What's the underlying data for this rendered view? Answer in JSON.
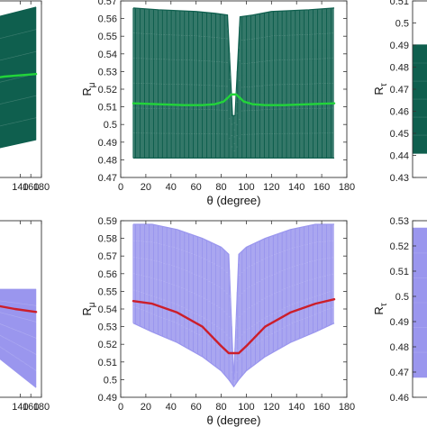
{
  "chart_data": [
    {
      "id": "top-left",
      "type": "scatter",
      "style": "dense-band",
      "xlim": [
        0,
        180
      ],
      "x_ticks": [
        140,
        160,
        180
      ],
      "x_tick_labels": [
        "140",
        "160",
        "180"
      ],
      "band_color": "#0f5f4e",
      "line_color": "#22d43a",
      "band": {
        "x": [
          10,
          170
        ],
        "upper": [
          0.548,
          0.565
        ],
        "lower": [
          0.445,
          0.46
        ]
      },
      "central_line": {
        "x": [
          10,
          60,
          110,
          170
        ],
        "y": [
          0.505,
          0.507,
          0.51,
          0.512
        ]
      },
      "ylim": [
        0.43,
        0.57
      ]
    },
    {
      "id": "top-middle",
      "type": "scatter",
      "style": "dense-band",
      "xlabel": "θ (degree)",
      "ylabel": "R",
      "ylabel_sub": "μ",
      "xlim": [
        0,
        180
      ],
      "ylim": [
        0.47,
        0.57
      ],
      "x_ticks": [
        0,
        20,
        40,
        60,
        80,
        100,
        120,
        140,
        160,
        180
      ],
      "x_tick_labels": [
        "0",
        "20",
        "40",
        "60",
        "80",
        "100",
        "120",
        "140",
        "160",
        "180"
      ],
      "y_ticks": [
        0.47,
        0.48,
        0.49,
        0.5,
        0.51,
        0.52,
        0.53,
        0.54,
        0.55,
        0.56,
        0.57
      ],
      "y_tick_labels": [
        "0.47",
        "0.48",
        "0.49",
        "0.5",
        "0.51",
        "0.52",
        "0.53",
        "0.54",
        "0.55",
        "0.56",
        "0.57"
      ],
      "band_color": "#0f5f4e",
      "line_color": "#22d43a",
      "band": {
        "x": [
          10,
          30,
          60,
          75,
          85,
          89,
          91,
          95,
          105,
          120,
          150,
          170
        ],
        "upper": [
          0.566,
          0.565,
          0.564,
          0.563,
          0.562,
          0.505,
          0.505,
          0.561,
          0.562,
          0.564,
          0.565,
          0.566
        ],
        "lower": [
          0.481,
          0.481,
          0.481,
          0.481,
          0.481,
          0.481,
          0.481,
          0.481,
          0.481,
          0.481,
          0.481,
          0.481
        ]
      },
      "central_line": {
        "x": [
          10,
          30,
          50,
          65,
          75,
          82,
          88,
          92,
          98,
          105,
          115,
          130,
          150,
          170
        ],
        "y": [
          0.512,
          0.5115,
          0.511,
          0.511,
          0.5115,
          0.513,
          0.517,
          0.517,
          0.513,
          0.5115,
          0.511,
          0.511,
          0.5115,
          0.512
        ]
      }
    },
    {
      "id": "top-right",
      "type": "scatter",
      "style": "dense-band",
      "ylabel": "R",
      "ylabel_sub": "τ",
      "xlim": [
        0,
        180
      ],
      "ylim": [
        0.43,
        0.51
      ],
      "y_ticks": [
        0.43,
        0.44,
        0.45,
        0.46,
        0.47,
        0.48,
        0.49,
        0.5,
        0.51
      ],
      "y_tick_labels": [
        "0.43",
        "0.44",
        "0.45",
        "0.46",
        "0.47",
        "0.48",
        "0.49",
        "0.5",
        "0.51"
      ],
      "band_color": "#0f5f4e",
      "band": {
        "x": [
          0,
          20
        ],
        "upper": [
          0.49,
          0.49
        ],
        "lower": [
          0.441,
          0.441
        ]
      }
    },
    {
      "id": "bottom-left",
      "type": "scatter",
      "style": "dense-band",
      "xlim": [
        0,
        180
      ],
      "x_ticks": [
        140,
        160,
        180
      ],
      "x_tick_labels": [
        "140",
        "160",
        "180"
      ],
      "band_color": "#9a96ee",
      "line_color": "#cc1e2a",
      "band": {
        "x": [
          10,
          100,
          170
        ],
        "upper": [
          0.6,
          0.6,
          0.6
        ],
        "lower": [
          0.56,
          0.53,
          0.5
        ]
      },
      "central_line": {
        "x": [
          10,
          80,
          130,
          170
        ],
        "y": [
          0.6,
          0.585,
          0.58,
          0.577
        ]
      },
      "ylim": [
        0.49,
        0.67
      ]
    },
    {
      "id": "bottom-middle",
      "type": "scatter",
      "style": "dense-band",
      "xlabel": "θ (degree)",
      "ylabel": "R",
      "ylabel_sub": "μ",
      "xlim": [
        0,
        180
      ],
      "ylim": [
        0.49,
        0.59
      ],
      "x_ticks": [
        0,
        20,
        40,
        60,
        80,
        100,
        120,
        140,
        160,
        180
      ],
      "x_tick_labels": [
        "0",
        "20",
        "40",
        "60",
        "80",
        "100",
        "120",
        "140",
        "160",
        "180"
      ],
      "y_ticks": [
        0.49,
        0.5,
        0.51,
        0.52,
        0.53,
        0.54,
        0.55,
        0.56,
        0.57,
        0.58,
        0.59
      ],
      "y_tick_labels": [
        "0.49",
        "0.5",
        "0.51",
        "0.52",
        "0.53",
        "0.54",
        "0.55",
        "0.56",
        "0.57",
        "0.58",
        "0.59"
      ],
      "band_color": "#9a96ee",
      "line_color": "#cc1e2a",
      "band": {
        "x": [
          10,
          25,
          45,
          65,
          80,
          86,
          90,
          94,
          100,
          115,
          135,
          155,
          170
        ],
        "upper": [
          0.588,
          0.588,
          0.585,
          0.58,
          0.575,
          0.571,
          0.5,
          0.571,
          0.575,
          0.58,
          0.585,
          0.588,
          0.588
        ],
        "lower": [
          0.532,
          0.527,
          0.521,
          0.513,
          0.505,
          0.5,
          0.496,
          0.5,
          0.505,
          0.513,
          0.521,
          0.527,
          0.532
        ]
      },
      "central_line": {
        "x": [
          10,
          25,
          45,
          65,
          80,
          86,
          94,
          100,
          115,
          135,
          155,
          170
        ],
        "y": [
          0.5445,
          0.543,
          0.538,
          0.53,
          0.519,
          0.515,
          0.515,
          0.519,
          0.53,
          0.538,
          0.543,
          0.5455
        ]
      }
    },
    {
      "id": "bottom-right",
      "type": "scatter",
      "style": "dense-band",
      "ylabel": "R",
      "ylabel_sub": "τ",
      "xlim": [
        0,
        180
      ],
      "ylim": [
        0.46,
        0.53
      ],
      "y_ticks": [
        0.46,
        0.47,
        0.48,
        0.49,
        0.5,
        0.51,
        0.52,
        0.53
      ],
      "y_tick_labels": [
        "0.46",
        "0.47",
        "0.48",
        "0.49",
        "0.5",
        "0.51",
        "0.52",
        "0.53"
      ],
      "band_color": "#9a96ee",
      "band": {
        "x": [
          0,
          20
        ],
        "upper": [
          0.527,
          0.527
        ],
        "lower": [
          0.468,
          0.468
        ]
      }
    }
  ]
}
